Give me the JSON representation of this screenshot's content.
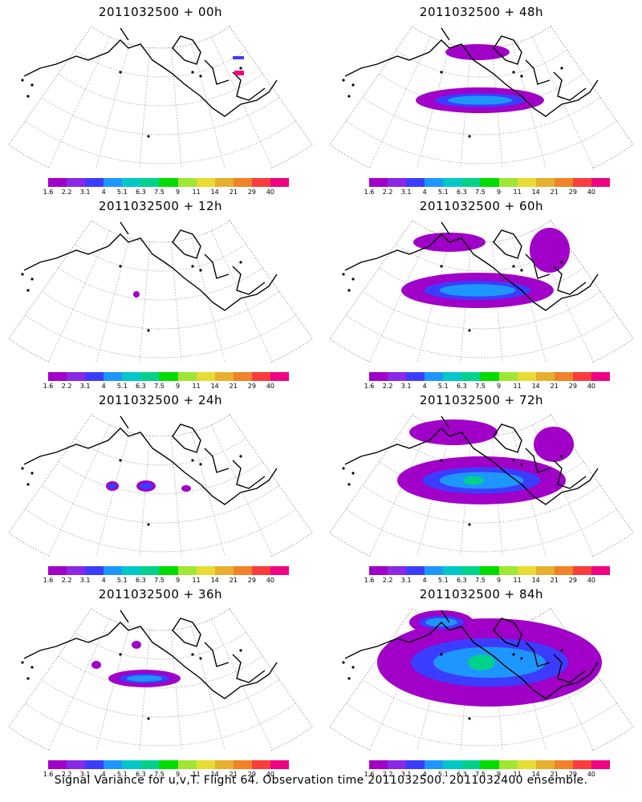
{
  "panels": [
    {
      "title": "2011032500 + 00h"
    },
    {
      "title": "2011032500 + 48h"
    },
    {
      "title": "2011032500 + 12h"
    },
    {
      "title": "2011032500 + 60h"
    },
    {
      "title": "2011032500 + 24h"
    },
    {
      "title": "2011032500 + 72h"
    },
    {
      "title": "2011032500 + 36h"
    },
    {
      "title": "2011032500 + 84h"
    }
  ],
  "colorbar": {
    "colors": [
      "#a000c8",
      "#8a28e6",
      "#3c3cff",
      "#1e96ff",
      "#00c8c8",
      "#00d28c",
      "#00dc00",
      "#a0e632",
      "#e6dc32",
      "#e6af2d",
      "#f08228",
      "#fa3c3c",
      "#f00082"
    ],
    "labels": [
      "1.6",
      "2.2",
      "3.1",
      "4",
      "5.1",
      "6.3",
      "7.5",
      "9",
      "11",
      "14",
      "21",
      "29",
      "40"
    ]
  },
  "footer": "Signal Variance for u,v,T. Flight 64. Observation time 2011032500. 2011032400 ensemble."
}
